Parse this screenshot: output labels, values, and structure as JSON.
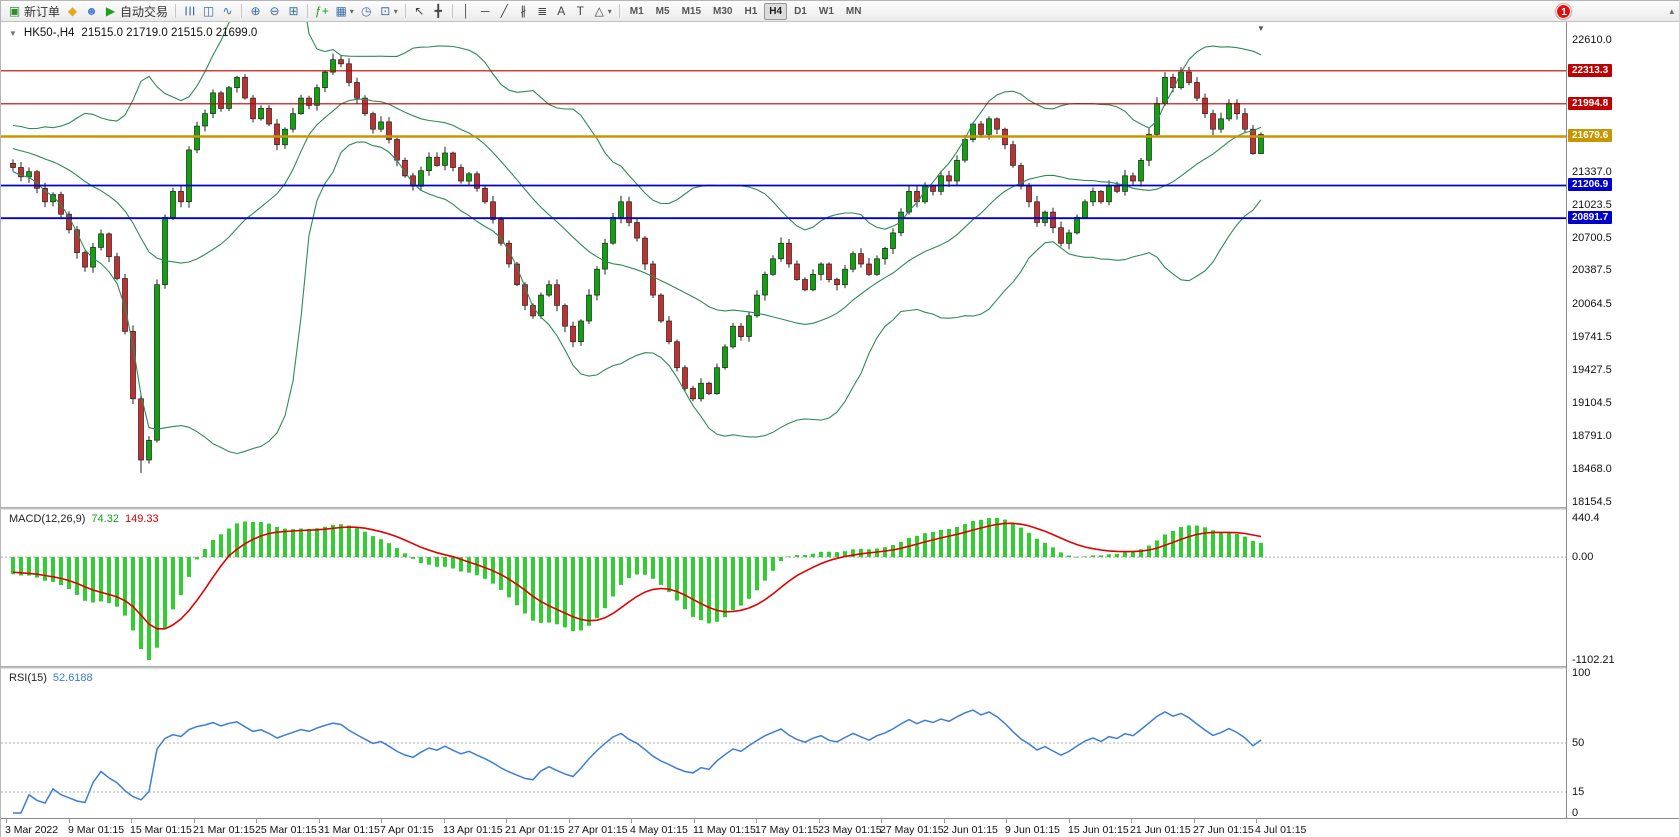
{
  "toolbar": {
    "items": [
      {
        "name": "new-order-button",
        "glyph": "▣",
        "glyph_color": "#2e8b2e",
        "label": "新订单"
      },
      {
        "name": "mql5-icon",
        "glyph": "◆",
        "glyph_color": "#e6a817"
      },
      {
        "name": "community-icon",
        "glyph": "☻",
        "glyph_color": "#4a7fd4"
      },
      {
        "name": "algo-trading-button",
        "glyph": "▶",
        "glyph_color": "#1d9e1d",
        "label": "自动交易"
      },
      {
        "sep": true
      },
      {
        "name": "bar-chart-icon",
        "glyph": "☰",
        "rot": true,
        "glyph_color": "#3a6ea5"
      },
      {
        "name": "candlestick-chart-icon",
        "glyph": "◫",
        "glyph_color": "#3a6ea5"
      },
      {
        "name": "line-chart-icon",
        "glyph": "∿",
        "glyph_color": "#3a6ea5"
      },
      {
        "sep": true
      },
      {
        "name": "zoom-in-icon",
        "glyph": "⊕",
        "glyph_color": "#3a6ea5"
      },
      {
        "name": "zoom-out-icon",
        "glyph": "⊖",
        "glyph_color": "#3a6ea5"
      },
      {
        "name": "tile-windows-icon",
        "glyph": "⊞",
        "glyph_color": "#3a6ea5"
      },
      {
        "sep": true
      },
      {
        "name": "indicators-icon",
        "glyph": "ƒ+",
        "glyph_color": "#1d9e1d"
      },
      {
        "name": "new-chart-icon",
        "glyph": "▦",
        "glyph_color": "#3a6ea5",
        "caret": true
      },
      {
        "name": "clock-icon",
        "glyph": "◷",
        "glyph_color": "#3a6ea5"
      },
      {
        "name": "window-layout-icon",
        "glyph": "⊡",
        "glyph_color": "#3a6ea5",
        "caret": true
      },
      {
        "sep": true
      },
      {
        "name": "cursor-icon",
        "glyph": "↖",
        "glyph_color": "#444"
      },
      {
        "name": "crosshair-icon",
        "glyph": "╋",
        "glyph_color": "#444"
      },
      {
        "sep": true
      },
      {
        "name": "vertical-line-icon",
        "glyph": "│",
        "glyph_color": "#444"
      },
      {
        "name": "horizontal-line-icon",
        "glyph": "─",
        "glyph_color": "#444"
      },
      {
        "name": "trendline-icon",
        "glyph": "╱",
        "glyph_color": "#444"
      },
      {
        "name": "channel-icon",
        "glyph": "∦",
        "glyph_color": "#444"
      },
      {
        "name": "fibonacci-icon",
        "glyph": "≣",
        "glyph_color": "#444"
      },
      {
        "name": "text-icon",
        "glyph": "A",
        "glyph_color": "#444"
      },
      {
        "name": "label-icon",
        "glyph": "T",
        "glyph_color": "#444"
      },
      {
        "name": "shapes-icon",
        "glyph": "△",
        "glyph_color": "#444",
        "caret": true
      },
      {
        "sep": true
      }
    ],
    "timeframes": [
      "M1",
      "M5",
      "M15",
      "M30",
      "H1",
      "H4",
      "D1",
      "W1",
      "MN"
    ],
    "active_timeframe": "H4",
    "notification_count": "1"
  },
  "icons": {
    "one_click_expand": "▼",
    "toolbar_overflow": "▴",
    "chart_shift": "▼"
  },
  "chart": {
    "symbol_period": "HK50-,H4",
    "ohlc_text": "21515.0 21719.0 21515.0 21699.0"
  },
  "price_axis": {
    "ticks": [
      "22610.0",
      "21337.0",
      "21023.5",
      "20700.5",
      "20387.5",
      "20064.5",
      "19741.5",
      "19427.5",
      "19104.5",
      "18791.0",
      "18468.0",
      "18154.5"
    ]
  },
  "time_axis": {
    "labels": [
      "3 Mar 2022",
      "9 Mar 01:15",
      "15 Mar 01:15",
      "21 Mar 01:15",
      "25 Mar 01:15",
      "31 Mar 01:15",
      "7 Apr 01:15",
      "13 Apr 01:15",
      "21 Apr 01:15",
      "27 Apr 01:15",
      "4 May 01:15",
      "11 May 01:15",
      "17 May 01:15",
      "23 May 01:15",
      "27 May 01:15",
      "2 Jun 01:15",
      "9 Jun 01:15",
      "15 Jun 01:15",
      "21 Jun 01:15",
      "27 Jun 01:15",
      "4 Jul 01:15"
    ]
  },
  "chart_data": {
    "type": "candlestick",
    "symbol": "HK50-",
    "timeframe": "H4",
    "y_axis": {
      "max": 22610.0,
      "min": 18154.5
    },
    "last_candle": {
      "open": 21515.0,
      "high": 21719.0,
      "low": 21515.0,
      "close": 21699.0
    },
    "session_low": 18435.0,
    "session_high": 22480.0,
    "up_color": "#0ca30c",
    "down_color": "#c03030",
    "closes": [
      21380,
      21290,
      21340,
      21180,
      21050,
      21120,
      20930,
      20780,
      20560,
      20420,
      20610,
      20740,
      20520,
      20310,
      19800,
      19150,
      18560,
      18750,
      20250,
      20900,
      21150,
      21050,
      21550,
      21780,
      21900,
      22100,
      21950,
      22150,
      22250,
      22050,
      21850,
      21950,
      21800,
      21600,
      21750,
      21900,
      22050,
      21980,
      22150,
      22300,
      22420,
      22380,
      22200,
      22050,
      21900,
      21750,
      21820,
      21650,
      21450,
      21300,
      21200,
      21350,
      21480,
      21400,
      21520,
      21380,
      21250,
      21320,
      21180,
      21050,
      20880,
      20650,
      20450,
      20250,
      20050,
      19950,
      20150,
      20250,
      20050,
      19850,
      19700,
      19900,
      20150,
      20400,
      20650,
      20900,
      21050,
      20850,
      20700,
      20450,
      20150,
      19900,
      19700,
      19450,
      19250,
      19150,
      19300,
      19200,
      19450,
      19650,
      19850,
      19750,
      19950,
      20150,
      20350,
      20500,
      20650,
      20450,
      20300,
      20200,
      20350,
      20450,
      20300,
      20250,
      20400,
      20550,
      20450,
      20350,
      20500,
      20600,
      20750,
      20950,
      21150,
      21050,
      21200,
      21150,
      21300,
      21250,
      21450,
      21650,
      21800,
      21700,
      21850,
      21750,
      21600,
      21400,
      21200,
      21050,
      20850,
      20950,
      20800,
      20650,
      20750,
      20900,
      21050,
      21150,
      21050,
      21200,
      21150,
      21300,
      21250,
      21450,
      21700,
      22000,
      22250,
      22150,
      22300,
      22200,
      22050,
      21900,
      21750,
      21850,
      22000,
      21900,
      21750,
      21515,
      21699
    ],
    "hlines": [
      {
        "label": "22313.3",
        "price": 22313.3,
        "color": "#c00000",
        "width": 1.2
      },
      {
        "label": "21994.8",
        "price": 21994.8,
        "color": "#c00000",
        "width": 1.2
      },
      {
        "label": "21679.6",
        "price": 21679.6,
        "color": "#c89600",
        "width": 2.4
      },
      {
        "label": "21206.9",
        "price": 21206.9,
        "color": "#0000c8",
        "width": 1.8
      },
      {
        "label": "20891.7",
        "price": 20891.7,
        "color": "#0000c8",
        "width": 1.8
      }
    ],
    "bollinger": {
      "period": 20,
      "deviations": 2,
      "color": "#2e8b57"
    },
    "macd": {
      "label": "MACD(12,26,9)",
      "value_main": "74.32",
      "value_signal": "149.33",
      "fast": 12,
      "slow": 26,
      "signal": 9,
      "axis_labels": [
        "440.4",
        "0.00",
        "-1102.21"
      ],
      "axis_max": 440.4,
      "axis_min": -1102.21,
      "hist_color": "#32cd32",
      "signal_color": "#e00000"
    },
    "rsi": {
      "label": "RSI(15)",
      "value": "52.6188",
      "period": 15,
      "axis_labels": [
        "100",
        "50",
        "15",
        "0"
      ],
      "levels": [
        50,
        15
      ],
      "color": "#3b7dd8"
    }
  }
}
